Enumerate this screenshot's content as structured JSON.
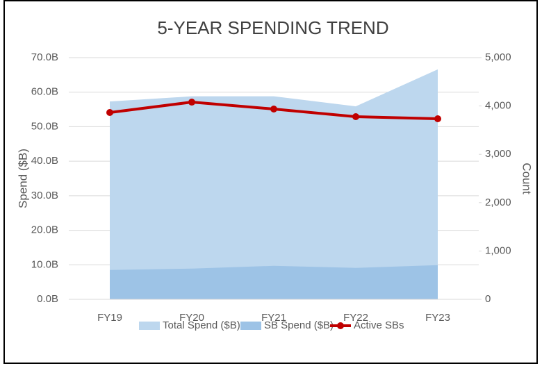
{
  "chart_data": {
    "type": "area-line",
    "title": "5-YEAR SPENDING TREND",
    "y_label": "Spend ($B)",
    "y2_label": "Count",
    "categories": [
      "FY19",
      "FY20",
      "FY21",
      "FY22",
      "FY23"
    ],
    "series": [
      {
        "name": "Total Spend ($B)",
        "color": "#bdd7ee",
        "kind": "area",
        "values": [
          57.3,
          58.8,
          58.8,
          55.9,
          66.6
        ]
      },
      {
        "name": "SB Spend ($B)",
        "color": "#9dc3e6",
        "kind": "area",
        "values": [
          8.5,
          8.9,
          9.7,
          9.1,
          9.9
        ]
      },
      {
        "name": "Active SBs",
        "color": "#c00000",
        "kind": "line",
        "axis": "y2",
        "values": [
          3865,
          4080,
          3937,
          3779,
          3736
        ]
      }
    ],
    "ylim": [
      0,
      70
    ],
    "yticks": [
      {
        "value": 0,
        "label": "0.0B"
      },
      {
        "value": 10,
        "label": "10.0B"
      },
      {
        "value": 20,
        "label": "20.0B"
      },
      {
        "value": 30,
        "label": "30.0B"
      },
      {
        "value": 40,
        "label": "40.0B"
      },
      {
        "value": 50,
        "label": "50.0B"
      },
      {
        "value": 60,
        "label": "60.0B"
      },
      {
        "value": 70,
        "label": "70.0B"
      }
    ],
    "y2lim": [
      0,
      5000
    ],
    "y2ticks": [
      0,
      {
        "value": 1000,
        "label": "1,000"
      },
      {
        "value": 2000,
        "label": "2,000"
      },
      {
        "value": 3000,
        "label": "3,000"
      },
      {
        "value": 4000,
        "label": "4,000"
      },
      {
        "value": 5000,
        "label": "5,000"
      }
    ],
    "grid": true,
    "legend": "bottom"
  }
}
